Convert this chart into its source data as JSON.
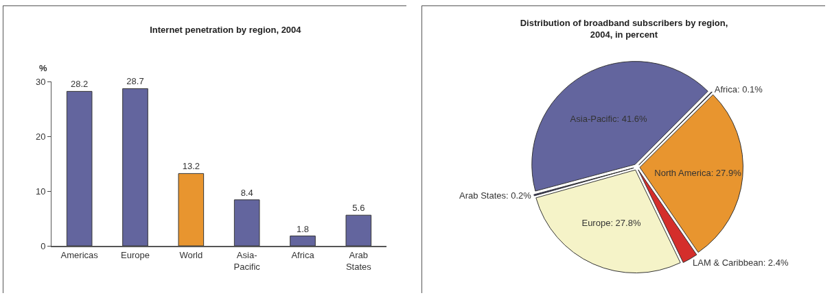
{
  "chart_data": [
    {
      "type": "bar",
      "title": "Internet penetration by region, 2004",
      "ylabel": "%",
      "categories": [
        "Americas",
        "Europe",
        "World",
        "Asia-\nPacific",
        "Africa",
        "Arab\nStates"
      ],
      "values": [
        28.2,
        28.7,
        13.2,
        8.4,
        1.8,
        5.6
      ],
      "colors": [
        "#63659e",
        "#63659e",
        "#e8952f",
        "#63659e",
        "#63659e",
        "#63659e"
      ],
      "ylim": [
        0,
        30
      ],
      "yticks": [
        0,
        10,
        20,
        30
      ],
      "grid": false,
      "legend": false,
      "data_labels": true
    },
    {
      "type": "pie",
      "title": "Distribution of broadband subscribers by region,\n2004, in percent",
      "categories": [
        "Asia-Pacific",
        "Africa",
        "North America",
        "LAM & Caribbean",
        "Europe",
        "Arab States"
      ],
      "values": [
        41.6,
        0.1,
        27.9,
        2.4,
        27.8,
        0.2
      ],
      "colors": [
        "#63659e",
        "#2e2e5e",
        "#e8952f",
        "#d42e2b",
        "#f5f3c8",
        "#3a3a6a"
      ],
      "legend": false,
      "value_labels": [
        "41.6%",
        "0.1%",
        "27.9%",
        "2.4%",
        "27.8%",
        "0.2%"
      ]
    }
  ]
}
